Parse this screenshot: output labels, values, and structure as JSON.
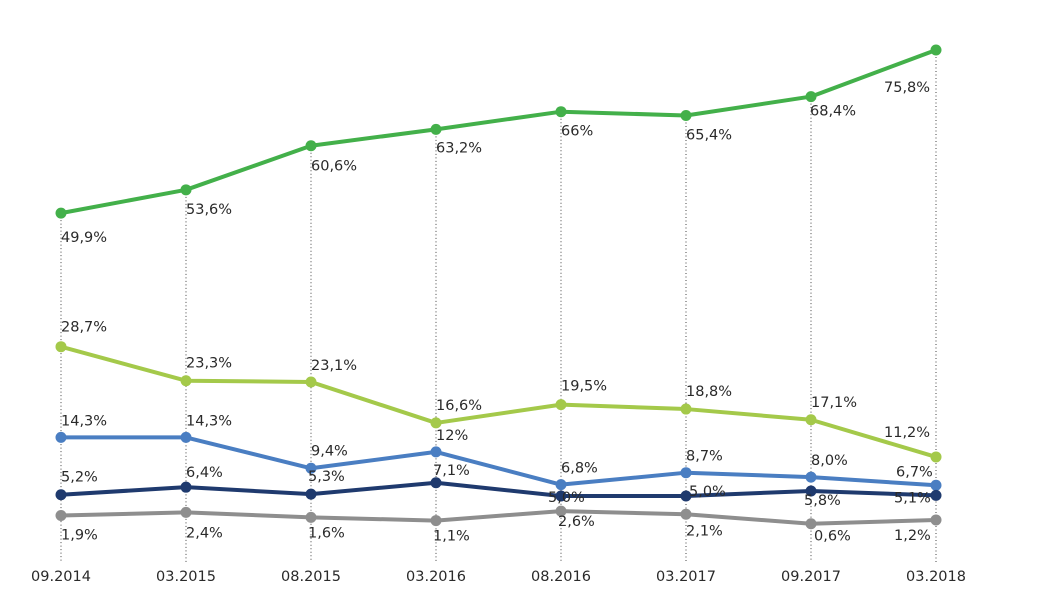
{
  "chart_data": {
    "type": "line",
    "categories": [
      "09.2014",
      "03.2015",
      "08.2015",
      "03.2016",
      "08.2016",
      "03.2017",
      "09.2017",
      "03.2018"
    ],
    "ylim": [
      0,
      80
    ],
    "grid": false,
    "series": [
      {
        "color": "#43b04a",
        "values": [
          49.9,
          53.6,
          60.6,
          63.2,
          66,
          65.4,
          68.4,
          75.8
        ],
        "labels": [
          "49,9%",
          "53,6%",
          "60,6%",
          "63,2%",
          "66%",
          "65,4%",
          "68,4%",
          "75,8%"
        ]
      },
      {
        "color": "#a4c94a",
        "values": [
          28.7,
          23.3,
          23.1,
          16.6,
          19.5,
          18.8,
          17.1,
          11.2
        ],
        "labels": [
          "28,7%",
          "23,3%",
          "23,1%",
          "16,6%",
          "19,5%",
          "18,8%",
          "17,1%",
          "11,2%"
        ]
      },
      {
        "color": "#4a7ec2",
        "values": [
          14.3,
          14.3,
          9.4,
          12,
          6.8,
          8.7,
          8.0,
          6.7
        ],
        "labels": [
          "14,3%",
          "14,3%",
          "9,4%",
          "12%",
          "6,8%",
          "8,7%",
          "8,0%",
          "6,7%"
        ]
      },
      {
        "color": "#1f3a6e",
        "values": [
          5.2,
          6.4,
          5.3,
          7.1,
          5.0,
          5.0,
          5.8,
          5.1
        ],
        "labels": [
          "5,2%",
          "6,4%",
          "5,3%",
          "7,1%",
          "5,0%",
          "5,0%",
          "5,8%",
          "5,1%"
        ]
      },
      {
        "color": "#8e8e8e",
        "values": [
          1.9,
          2.4,
          1.6,
          1.1,
          2.6,
          2.1,
          0.6,
          1.2
        ],
        "labels": [
          "1,9%",
          "2,4%",
          "1,6%",
          "1,1%",
          "2,6%",
          "2,1%",
          "0,6%",
          "1,2%"
        ]
      }
    ]
  }
}
